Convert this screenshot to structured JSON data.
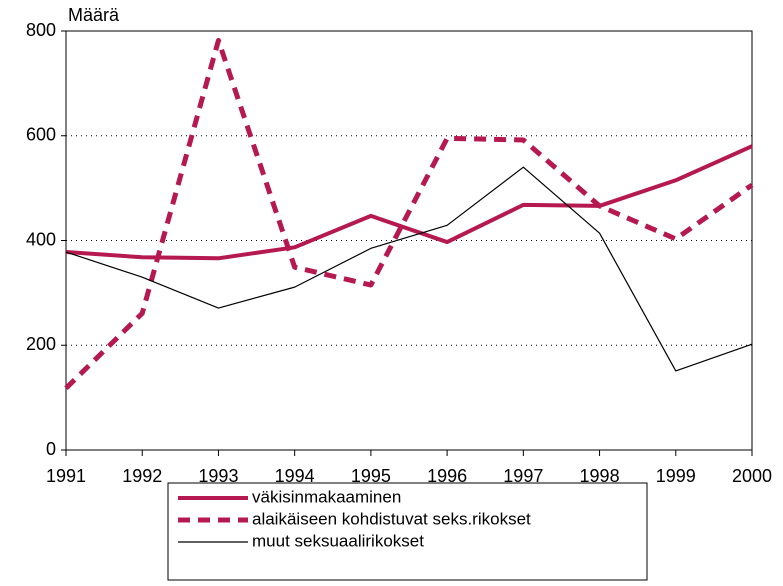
{
  "chart_data": {
    "type": "line",
    "y_label": "Määrä",
    "categories": [
      "1991",
      "1992",
      "1993",
      "1994",
      "1995",
      "1996",
      "1997",
      "1998",
      "1999",
      "2000"
    ],
    "series": [
      {
        "name": "väkisinmakaaminen",
        "color": "#b5194f",
        "style": "solid",
        "width": 4,
        "values": [
          378,
          368,
          366,
          387,
          447,
          397,
          468,
          466,
          515,
          580
        ]
      },
      {
        "name": "alaikäiseen kohdistuvat seks.rikokset",
        "color": "#b5194f",
        "style": "dashed",
        "width": 5,
        "values": [
          118,
          261,
          782,
          349,
          315,
          595,
          592,
          466,
          403,
          506
        ]
      },
      {
        "name": "muut seksuaalirikokset",
        "color": "#000000",
        "style": "solid",
        "width": 1.2,
        "values": [
          378,
          330,
          271,
          311,
          385,
          429,
          540,
          414,
          151,
          202
        ]
      }
    ],
    "ylim": [
      0,
      800
    ],
    "yticks": [
      0,
      200,
      400,
      600,
      800
    ],
    "grid": true
  }
}
